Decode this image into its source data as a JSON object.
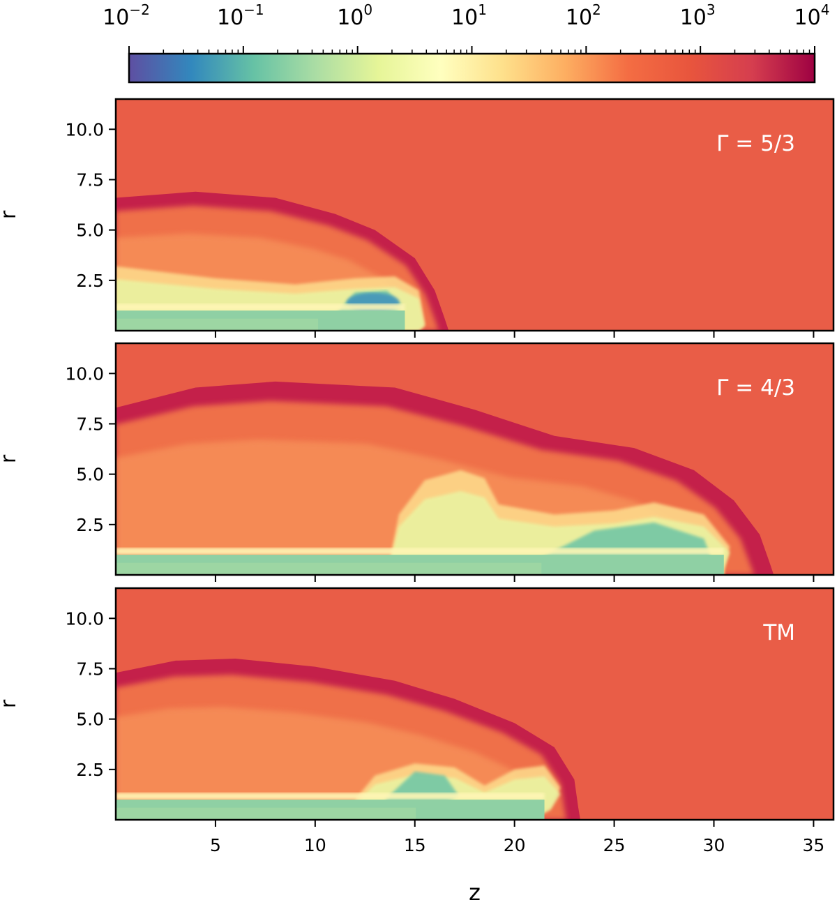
{
  "figure": {
    "type": "multi-panel-colormap",
    "background": "#e95d47"
  },
  "colorbar": {
    "scale": "log",
    "range": [
      0.01,
      10000
    ],
    "tick_labels": [
      {
        "value": 0.01,
        "base": "10",
        "exp": "−2"
      },
      {
        "value": 0.1,
        "base": "10",
        "exp": "−1"
      },
      {
        "value": 1,
        "base": "10",
        "exp": "0"
      },
      {
        "value": 10,
        "base": "10",
        "exp": "1"
      },
      {
        "value": 100,
        "base": "10",
        "exp": "2"
      },
      {
        "value": 1000,
        "base": "10",
        "exp": "3"
      },
      {
        "value": 10000,
        "base": "10",
        "exp": "4"
      }
    ],
    "colormap": "Spectral_r",
    "colormap_stops": [
      "#5e4fa2",
      "#3288bd",
      "#66c2a5",
      "#abdda4",
      "#e6f598",
      "#ffffbf",
      "#fee08b",
      "#fdae61",
      "#f46d43",
      "#e8553d",
      "#d53e4f",
      "#9e0142"
    ]
  },
  "chart_data": [
    {
      "type": "heatmap",
      "panel_label": "Γ = 5/3",
      "ylabel": "r",
      "xlabel": "",
      "xlim": [
        0,
        36
      ],
      "ylim": [
        0,
        11.5
      ],
      "y_ticks": [
        "10.0",
        "7.5",
        "5.0",
        "2.5"
      ],
      "x_ticks": [],
      "cocoon_outline": [
        [
          0,
          6.6
        ],
        [
          4,
          6.9
        ],
        [
          8,
          6.6
        ],
        [
          11,
          5.8
        ],
        [
          13,
          5.0
        ],
        [
          15,
          3.6
        ],
        [
          16,
          2.0
        ],
        [
          16.5,
          0.6
        ],
        [
          16.7,
          0
        ]
      ],
      "backflow_outline": [
        [
          0,
          3.2
        ],
        [
          5,
          2.6
        ],
        [
          9,
          2.3
        ],
        [
          12,
          2.6
        ],
        [
          14,
          2.7
        ],
        [
          15.2,
          2.0
        ],
        [
          15.5,
          0.3
        ],
        [
          15.2,
          0
        ]
      ],
      "low_density_lobe": [
        [
          11,
          0.8
        ],
        [
          12,
          1.9
        ],
        [
          13.6,
          2.0
        ],
        [
          14.4,
          1.2
        ],
        [
          13.5,
          0.6
        ],
        [
          11.5,
          0.7
        ]
      ],
      "jet_radius": 1.0,
      "jet_head_z": 14.5
    },
    {
      "type": "heatmap",
      "panel_label": "Γ = 4/3",
      "ylabel": "r",
      "xlabel": "",
      "xlim": [
        0,
        36
      ],
      "ylim": [
        0,
        11.5
      ],
      "y_ticks": [
        "10.0",
        "7.5",
        "5.0",
        "2.5"
      ],
      "x_ticks": [],
      "cocoon_outline": [
        [
          0,
          8.3
        ],
        [
          4,
          9.3
        ],
        [
          8,
          9.6
        ],
        [
          14,
          9.3
        ],
        [
          18,
          8.2
        ],
        [
          22,
          6.9
        ],
        [
          26,
          6.3
        ],
        [
          29,
          5.2
        ],
        [
          31,
          3.7
        ],
        [
          32.3,
          2.0
        ],
        [
          32.8,
          0.6
        ],
        [
          33,
          0
        ]
      ],
      "backflow_outline": [
        [
          13.8,
          1.0
        ],
        [
          14.2,
          3.0
        ],
        [
          15.5,
          4.7
        ],
        [
          17.3,
          5.2
        ],
        [
          18.5,
          4.8
        ],
        [
          19.2,
          3.5
        ],
        [
          22,
          3.0
        ],
        [
          25,
          3.2
        ],
        [
          27,
          3.6
        ],
        [
          29.5,
          3.0
        ],
        [
          30.8,
          1.4
        ],
        [
          30.5,
          0.3
        ]
      ],
      "low_density_lobe": [
        [
          21,
          0.7
        ],
        [
          24,
          2.2
        ],
        [
          27,
          2.6
        ],
        [
          29.5,
          1.8
        ],
        [
          30,
          0.5
        ],
        [
          25,
          0.3
        ]
      ],
      "jet_radius": 1.0,
      "jet_head_z": 30.5
    },
    {
      "type": "heatmap",
      "panel_label": "TM",
      "ylabel": "r",
      "xlabel": "z",
      "xlim": [
        0,
        36
      ],
      "ylim": [
        0,
        11.5
      ],
      "y_ticks": [
        "10.0",
        "7.5",
        "5.0",
        "2.5"
      ],
      "x_ticks": [
        "5",
        "10",
        "15",
        "20",
        "25",
        "30",
        "35"
      ],
      "cocoon_outline": [
        [
          0,
          7.3
        ],
        [
          3,
          7.9
        ],
        [
          6,
          8.0
        ],
        [
          10,
          7.6
        ],
        [
          14,
          6.9
        ],
        [
          17,
          6.0
        ],
        [
          20,
          4.8
        ],
        [
          22,
          3.6
        ],
        [
          23,
          2.0
        ],
        [
          23.2,
          0.6
        ],
        [
          23.3,
          0
        ]
      ],
      "backflow_outline": [
        [
          12,
          1.0
        ],
        [
          13,
          2.2
        ],
        [
          15,
          2.8
        ],
        [
          17,
          2.6
        ],
        [
          18.5,
          1.7
        ],
        [
          20,
          2.5
        ],
        [
          21.5,
          2.7
        ],
        [
          22.3,
          1.6
        ],
        [
          21.8,
          0.6
        ],
        [
          20.8,
          0
        ]
      ],
      "low_density_lobe": [
        [
          13.5,
          1.0
        ],
        [
          15,
          2.4
        ],
        [
          16.5,
          2.2
        ],
        [
          17.2,
          1.2
        ],
        [
          16,
          0.6
        ],
        [
          14,
          0.7
        ]
      ],
      "jet_radius": 1.0,
      "jet_head_z": 21.5
    }
  ]
}
